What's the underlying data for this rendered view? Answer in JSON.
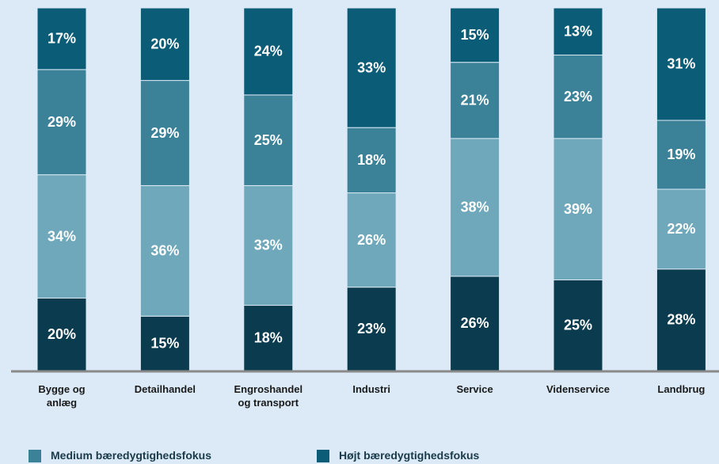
{
  "chart_data": {
    "type": "stacked_bar",
    "categories": [
      "Bygge og anlæg",
      "Detailhandel",
      "Engroshandel og transport",
      "Industri",
      "Service",
      "Videnservice",
      "Landbrug"
    ],
    "series": [
      {
        "color": "#0b3b4e",
        "values": [
          20,
          15,
          18,
          23,
          26,
          25,
          28
        ],
        "value_labels": [
          "20%",
          "15%",
          "18%",
          "23%",
          "26%",
          "25%",
          "28%"
        ]
      },
      {
        "color": "#6ea8ba",
        "values": [
          34,
          36,
          33,
          26,
          38,
          39,
          22
        ],
        "value_labels": [
          "34%",
          "36%",
          "33%",
          "26%",
          "38%",
          "39%",
          "22%"
        ]
      },
      {
        "name": "Medium bæredygtighedsfokus",
        "color": "#3b8299",
        "values": [
          29,
          29,
          25,
          18,
          21,
          23,
          19
        ],
        "value_labels": [
          "29%",
          "29%",
          "25%",
          "18%",
          "21%",
          "23%",
          "19%"
        ]
      },
      {
        "name": "Højt bæredygtighedsfokus",
        "color": "#0b5c76",
        "values": [
          17,
          20,
          24,
          33,
          15,
          13,
          31
        ],
        "value_labels": [
          "17%",
          "20%",
          "24%",
          "33%",
          "15%",
          "13%",
          "31%"
        ]
      }
    ],
    "ylim": [
      0,
      100
    ]
  }
}
